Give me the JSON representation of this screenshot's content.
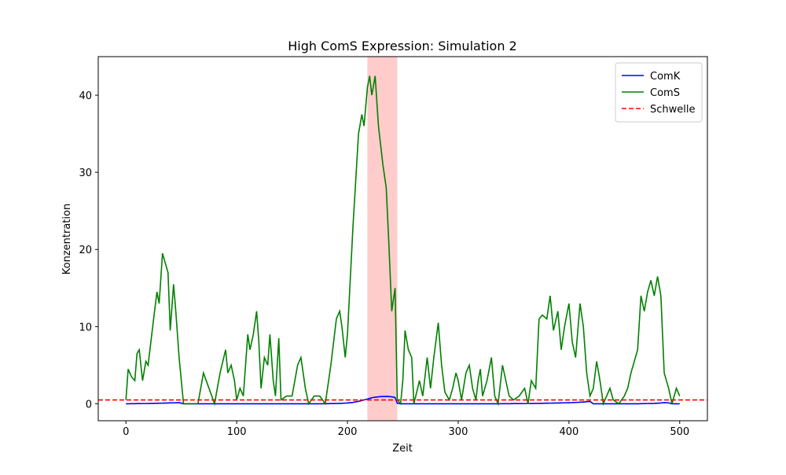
{
  "chart_data": {
    "type": "line",
    "title": "High ComS Expression: Simulation 2",
    "xlabel": "Zeit",
    "ylabel": "Konzentration",
    "x": [
      0,
      2,
      5,
      8,
      10,
      12,
      15,
      18,
      20,
      25,
      28,
      30,
      33,
      35,
      38,
      40,
      43,
      45,
      48,
      52,
      60,
      65,
      70,
      75,
      80,
      85,
      90,
      92,
      95,
      98,
      100,
      103,
      106,
      110,
      112,
      115,
      118,
      120,
      122,
      125,
      128,
      130,
      133,
      135,
      138,
      140,
      145,
      150,
      155,
      158,
      162,
      165,
      170,
      175,
      180,
      185,
      190,
      193,
      195,
      198,
      200,
      205,
      210,
      213,
      215,
      218,
      220,
      222,
      225,
      228,
      232,
      235,
      237,
      240,
      242,
      243,
      245,
      248,
      250,
      252,
      255,
      258,
      260,
      265,
      268,
      272,
      275,
      278,
      282,
      285,
      288,
      292,
      295,
      298,
      300,
      303,
      307,
      310,
      313,
      316,
      318,
      320,
      322,
      326,
      330,
      333,
      336,
      340,
      343,
      346,
      350,
      355,
      360,
      363,
      366,
      370,
      373,
      376,
      380,
      383,
      386,
      390,
      393,
      396,
      400,
      403,
      406,
      410,
      413,
      416,
      419,
      422,
      425,
      428,
      431,
      434,
      437,
      440,
      445,
      450,
      453,
      456,
      459,
      462,
      465,
      468,
      471,
      474,
      477,
      480,
      483,
      486,
      490,
      493,
      497,
      500
    ],
    "series": [
      {
        "name": "ComK",
        "color": "#0000ff",
        "values": [
          0,
          0,
          0.01,
          0.01,
          0.02,
          0.02,
          0.03,
          0.03,
          0.04,
          0.05,
          0.06,
          0.07,
          0.08,
          0.09,
          0.1,
          0.11,
          0.12,
          0.13,
          0.15,
          0,
          0,
          0,
          0,
          0,
          0,
          0,
          0,
          0,
          0,
          0,
          0,
          0,
          0,
          0,
          0,
          0,
          0,
          0,
          0,
          0,
          0,
          0,
          0,
          0,
          0,
          0,
          0,
          0,
          0,
          0,
          0,
          0,
          0,
          0,
          0.01,
          0.02,
          0.04,
          0.05,
          0.06,
          0.08,
          0.1,
          0.18,
          0.32,
          0.42,
          0.5,
          0.6,
          0.7,
          0.78,
          0.85,
          0.9,
          0.94,
          0.95,
          0.94,
          0.9,
          0.85,
          0.8,
          0.05,
          0,
          0,
          0,
          0,
          0,
          0,
          0,
          0,
          0,
          0,
          0,
          0,
          0,
          0,
          0,
          0,
          0,
          0,
          0,
          0,
          0,
          0,
          0,
          0,
          0,
          0,
          0,
          0,
          0,
          0,
          0.01,
          0.01,
          0.01,
          0.02,
          0.02,
          0.03,
          0.03,
          0.04,
          0.05,
          0.05,
          0.06,
          0.07,
          0.08,
          0.09,
          0.1,
          0.11,
          0.12,
          0.14,
          0.15,
          0.17,
          0.2,
          0.23,
          0.27,
          0.3,
          0,
          0,
          0,
          0,
          0,
          0,
          0,
          0,
          0,
          0,
          0,
          0,
          0,
          0.01,
          0.02,
          0.03,
          0.04,
          0.05,
          0.07,
          0.1,
          0.15,
          0.12,
          0,
          0,
          0
        ]
      },
      {
        "name": "ComS",
        "color": "#008000",
        "values": [
          0.5,
          4.5,
          3.5,
          3,
          6.5,
          7,
          3,
          5.5,
          5,
          11,
          14.5,
          13,
          19.5,
          18.5,
          17,
          9.5,
          15.5,
          12,
          6,
          0,
          0,
          0,
          4,
          2,
          0,
          4,
          7,
          4,
          5,
          3,
          0.5,
          2,
          1,
          9,
          7,
          9,
          12,
          8,
          2,
          6,
          5,
          9,
          3,
          1,
          8.5,
          0.5,
          1,
          1,
          5,
          6,
          2,
          0,
          1,
          1,
          0,
          5,
          11,
          12,
          10,
          6,
          9,
          23,
          35,
          37.5,
          36,
          41,
          42.5,
          40,
          42.5,
          36,
          31,
          28,
          22,
          12,
          14,
          15,
          0.5,
          0,
          3,
          9.5,
          7,
          6,
          0,
          3,
          1,
          6,
          2,
          6,
          10.5,
          5,
          1.5,
          0.5,
          2,
          4,
          3,
          0.5,
          4,
          5,
          2,
          0.5,
          3,
          4.5,
          1,
          3,
          6,
          1,
          0,
          5,
          3,
          1,
          0.5,
          1,
          2,
          0,
          3,
          2,
          11,
          11.5,
          11,
          14,
          9.5,
          12,
          7,
          10,
          13,
          8,
          6,
          13,
          10,
          4,
          1,
          2,
          5.5,
          3,
          0,
          1,
          2,
          0.5,
          0,
          1,
          2,
          4,
          5.5,
          7,
          14,
          12,
          14.5,
          16,
          14,
          16.5,
          14,
          4,
          2,
          0,
          2,
          1
        ]
      }
    ],
    "threshold": {
      "name": "Schwelle",
      "value": 0.5,
      "color": "#ff0000"
    },
    "highlight": {
      "xlim": [
        218,
        245
      ],
      "color": "#ff0000"
    },
    "xlim": [
      -25,
      525
    ],
    "ylim": [
      -2.2,
      45
    ],
    "xticks": [
      0,
      100,
      200,
      300,
      400,
      500
    ],
    "yticks": [
      0,
      10,
      20,
      30,
      40
    ],
    "legend": "upper right"
  }
}
